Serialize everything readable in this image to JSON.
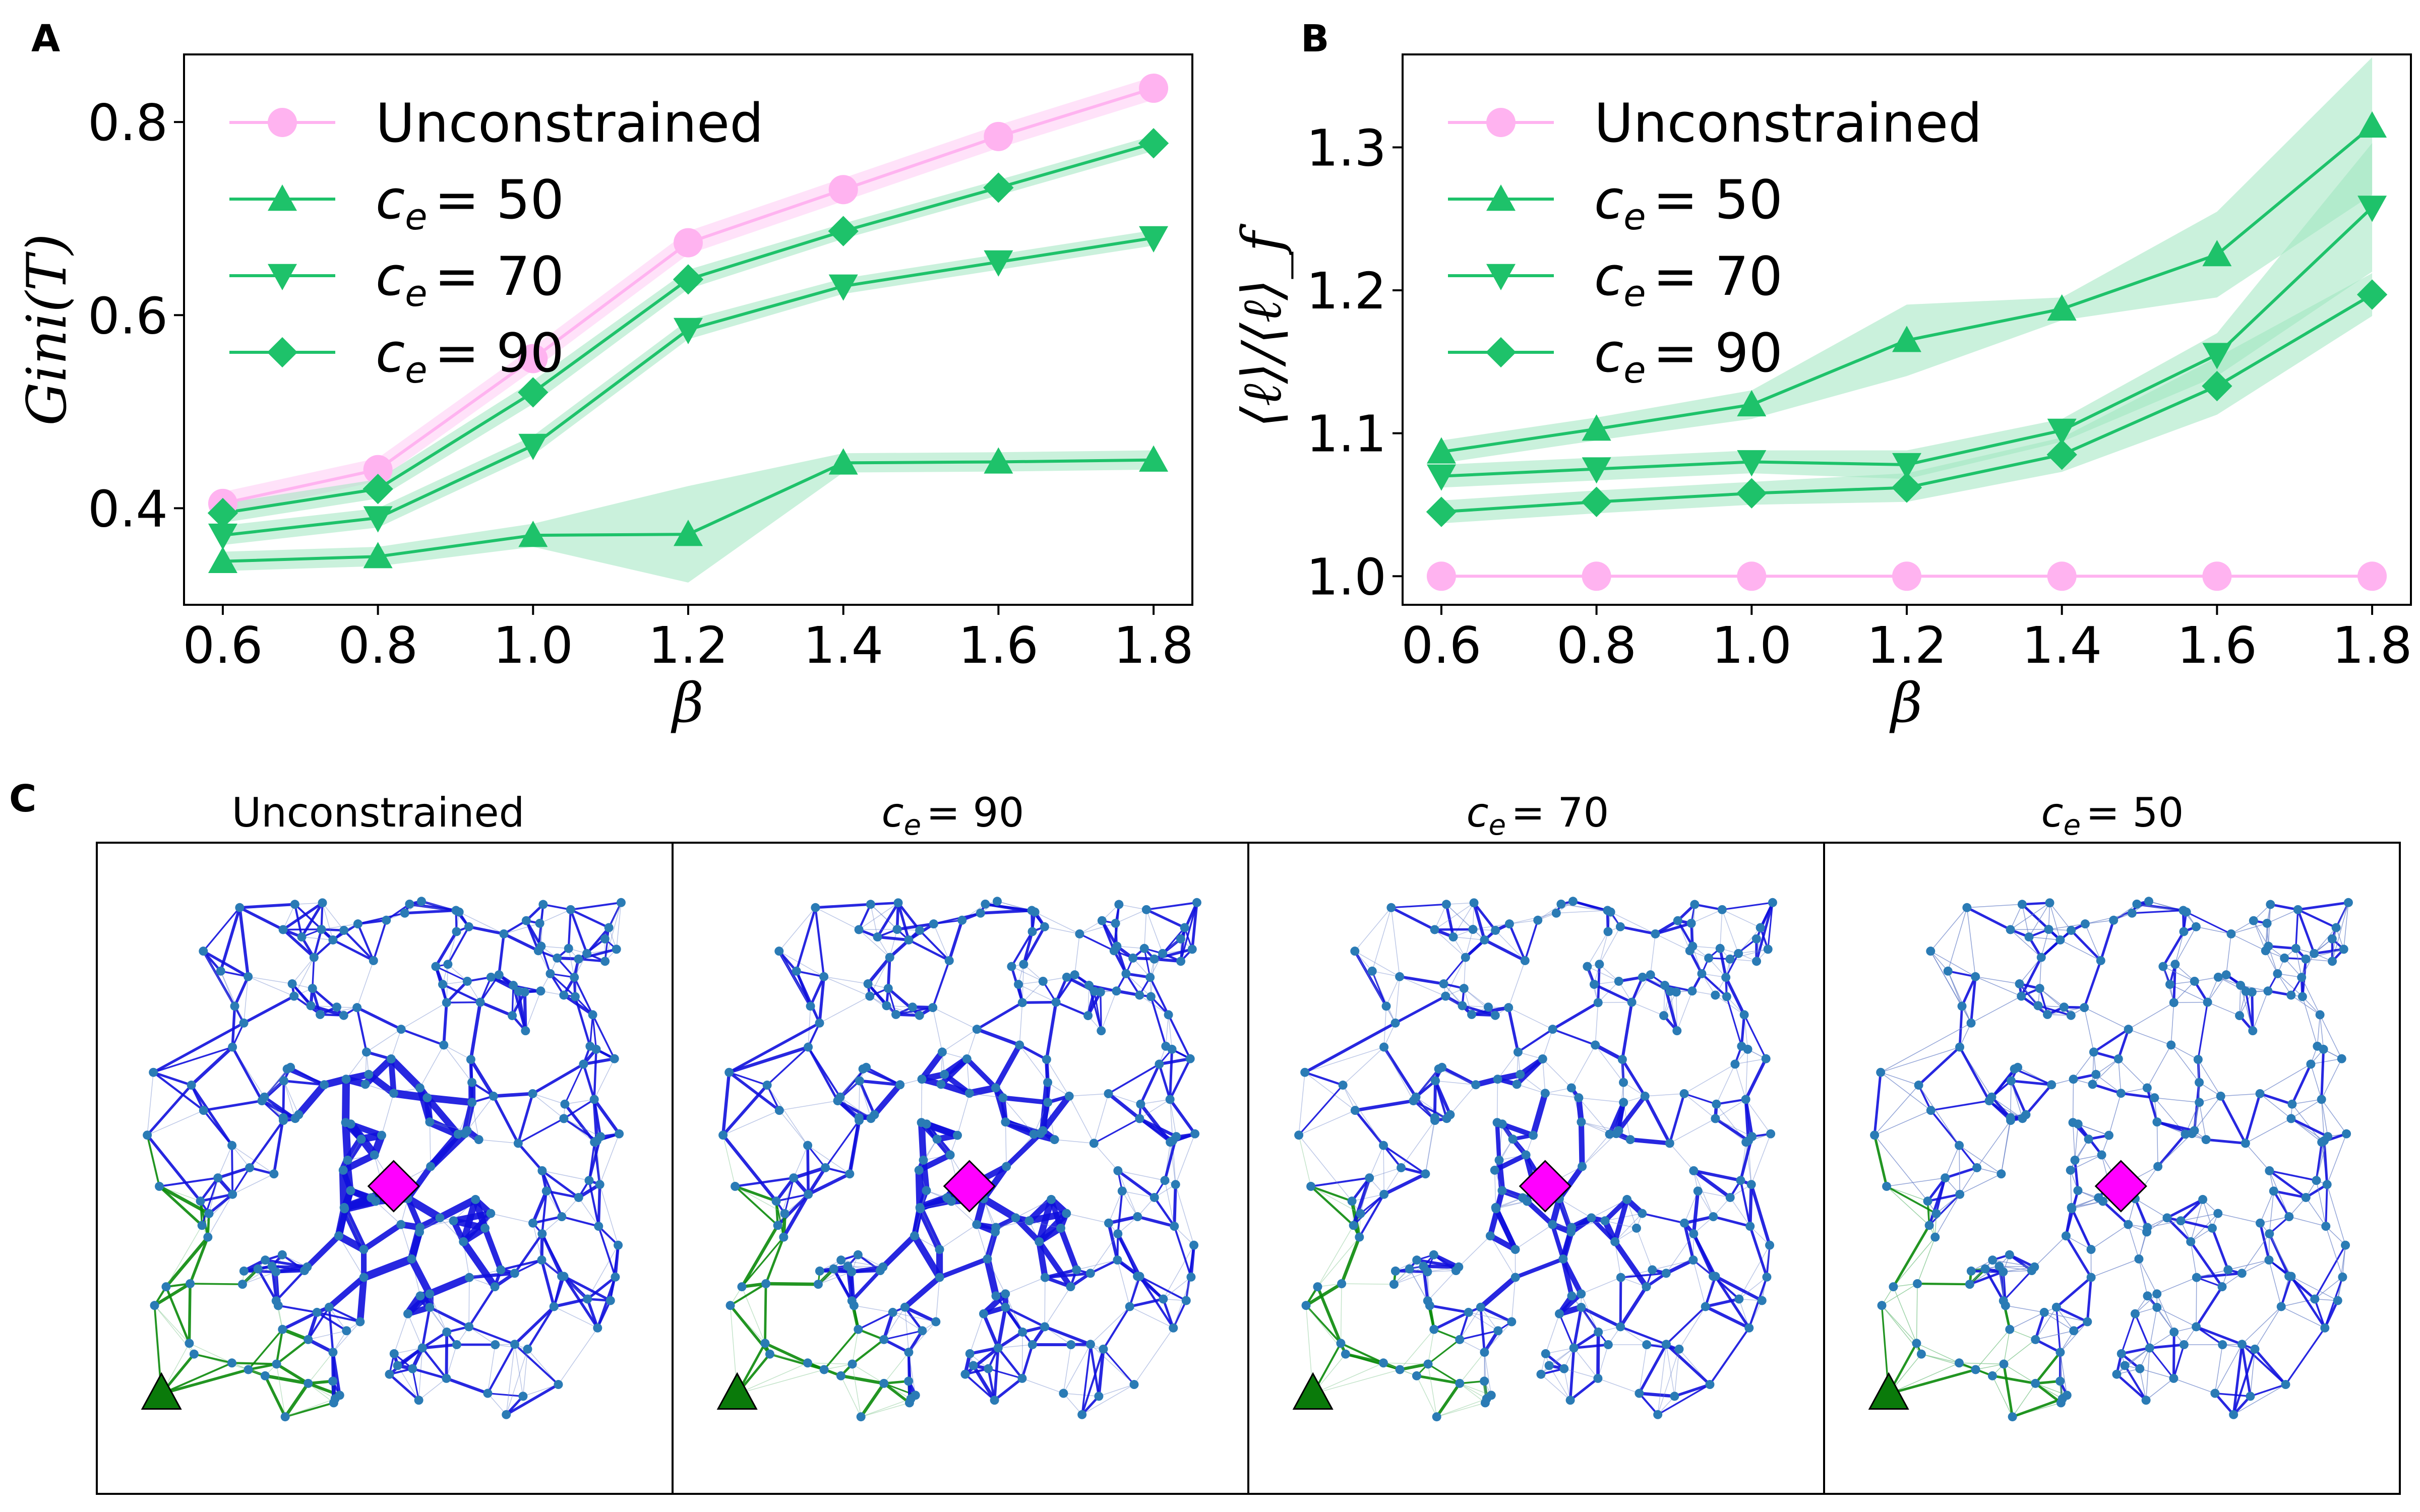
{
  "panels": {
    "A": "A",
    "B": "B",
    "C": "C"
  },
  "colors": {
    "unconstrained": "#ffb3f0",
    "constrained": "#1ec26a",
    "band": "#9fe6bf",
    "band_pink": "#ffd6f6",
    "network_blue": "#1010dd",
    "network_green": "#0a8a0a",
    "node": "#2a7bb5",
    "sink": "#ff00ff",
    "source": "#0a7a0a"
  },
  "chart_data": [
    {
      "type": "line",
      "panel": "A",
      "xlabel": "β",
      "ylabel": "Gini(T)",
      "x": [
        0.6,
        0.8,
        1.0,
        1.2,
        1.4,
        1.6,
        1.8
      ],
      "xticks": [
        "0.6",
        "0.8",
        "1.0",
        "1.2",
        "1.4",
        "1.6",
        "1.8"
      ],
      "yticks": [
        "0.4",
        "0.6",
        "0.8"
      ],
      "ylim": [
        0.3,
        0.87
      ],
      "legend_position": "upper-left",
      "series": [
        {
          "name": "Unconstrained",
          "marker": "circle",
          "color": "#ffb3f0",
          "values": [
            0.405,
            0.44,
            0.555,
            0.675,
            0.73,
            0.785,
            0.835
          ],
          "band": [
            0.012,
            0.012,
            0.012,
            0.012,
            0.012,
            0.012,
            0.012
          ]
        },
        {
          "name": "c_e = 50",
          "marker": "triangle-up",
          "color": "#1ec26a",
          "values": [
            0.345,
            0.35,
            0.372,
            0.373,
            0.447,
            0.448,
            0.45
          ],
          "band": [
            0.01,
            0.01,
            0.012,
            0.05,
            0.01,
            0.01,
            0.01
          ]
        },
        {
          "name": "c_e = 70",
          "marker": "triangle-down",
          "color": "#1ec26a",
          "values": [
            0.372,
            0.39,
            0.465,
            0.585,
            0.63,
            0.655,
            0.68
          ],
          "band": [
            0.01,
            0.01,
            0.01,
            0.01,
            0.008,
            0.008,
            0.008
          ]
        },
        {
          "name": "c_e = 90",
          "marker": "diamond",
          "color": "#1ec26a",
          "values": [
            0.395,
            0.42,
            0.52,
            0.637,
            0.687,
            0.732,
            0.778
          ],
          "band": [
            0.01,
            0.01,
            0.012,
            0.01,
            0.008,
            0.008,
            0.008
          ]
        }
      ]
    },
    {
      "type": "line",
      "panel": "B",
      "xlabel": "β",
      "ylabel": "⟨ℓ⟩/⟨ℓ⟩_f",
      "x": [
        0.6,
        0.8,
        1.0,
        1.2,
        1.4,
        1.6,
        1.8
      ],
      "xticks": [
        "0.6",
        "0.8",
        "1.0",
        "1.2",
        "1.4",
        "1.6",
        "1.8"
      ],
      "yticks": [
        "1.0",
        "1.1",
        "1.2",
        "1.3"
      ],
      "ylim": [
        0.98,
        1.365
      ],
      "legend_position": "upper-left",
      "series": [
        {
          "name": "Unconstrained",
          "marker": "circle",
          "color": "#ffb3f0",
          "values": [
            1.0,
            1.0,
            1.0,
            1.0,
            1.0,
            1.0,
            1.0
          ],
          "band": [
            0,
            0,
            0,
            0,
            0,
            0,
            0
          ]
        },
        {
          "name": "c_e = 50",
          "marker": "triangle-up",
          "color": "#1ec26a",
          "values": [
            1.087,
            1.103,
            1.12,
            1.165,
            1.187,
            1.225,
            1.315
          ],
          "band": [
            0.008,
            0.008,
            0.01,
            0.025,
            0.008,
            0.03,
            0.048
          ]
        },
        {
          "name": "c_e = 70",
          "marker": "triangle-down",
          "color": "#1ec26a",
          "values": [
            1.07,
            1.075,
            1.08,
            1.078,
            1.102,
            1.155,
            1.258
          ],
          "band": [
            0.008,
            0.008,
            0.008,
            0.01,
            0.008,
            0.015,
            0.045
          ]
        },
        {
          "name": "c_e = 90",
          "marker": "diamond",
          "color": "#1ec26a",
          "values": [
            1.045,
            1.052,
            1.058,
            1.062,
            1.085,
            1.133,
            1.197
          ],
          "band": [
            0.008,
            0.008,
            0.008,
            0.01,
            0.012,
            0.02,
            0.015
          ]
        }
      ]
    }
  ],
  "legend": {
    "unconstrained": "Unconstrained",
    "c50": "= 50",
    "c70": "= 70",
    "c90": "= 90",
    "c_symbol": "c",
    "c_subscript": "e"
  },
  "networks": {
    "titles": [
      "Unconstrained",
      "= 90",
      "= 70",
      "= 50"
    ],
    "title_has_ce": [
      false,
      true,
      true,
      true
    ]
  }
}
